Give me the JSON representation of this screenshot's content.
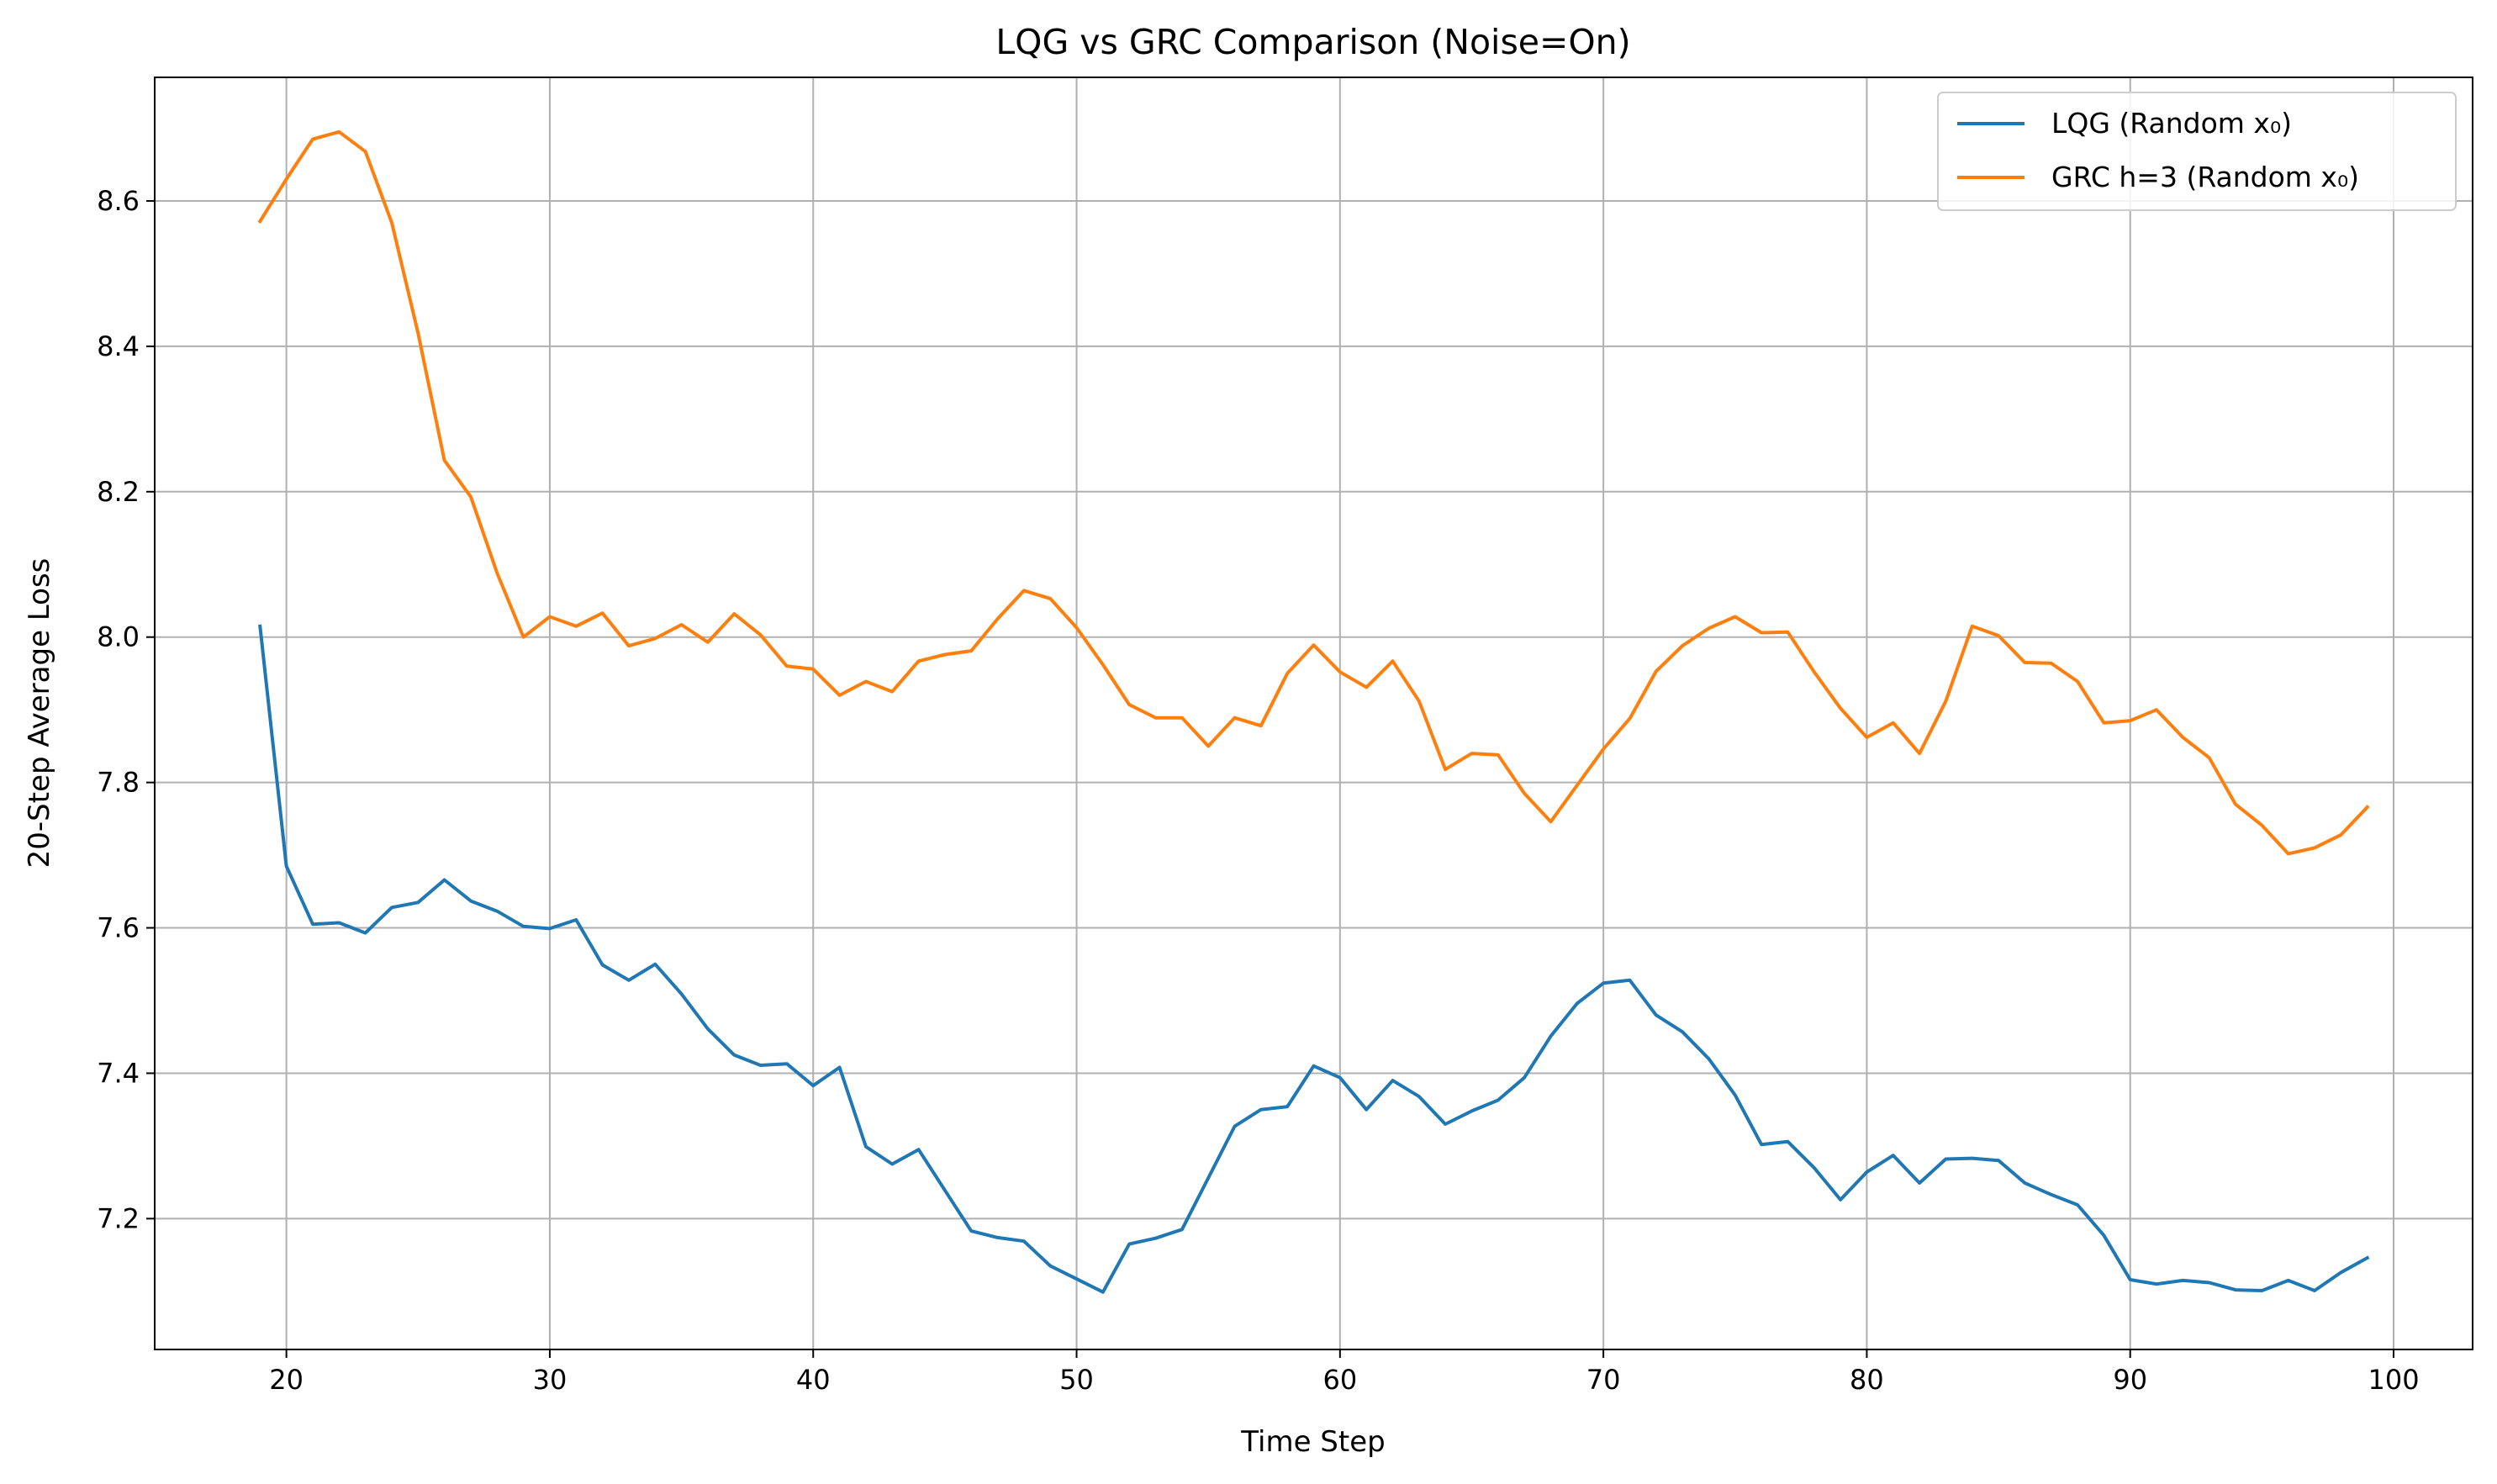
{
  "chart_data": {
    "type": "line",
    "title": "LQG vs GRC Comparison (Noise=On)",
    "xlabel": "Time Step",
    "ylabel": "20-Step Average Loss",
    "xlim": [
      15,
      103
    ],
    "ylim": [
      7.02,
      8.77
    ],
    "xticks": [
      20,
      30,
      40,
      50,
      60,
      70,
      80,
      90,
      100
    ],
    "yticks": [
      7.2,
      7.4,
      7.6,
      7.8,
      8.0,
      8.2,
      8.4,
      8.6
    ],
    "grid": true,
    "legend_position": "top-right",
    "x": [
      19,
      20,
      21,
      22,
      23,
      24,
      25,
      26,
      27,
      28,
      29,
      30,
      31,
      32,
      33,
      34,
      35,
      36,
      37,
      38,
      39,
      40,
      41,
      42,
      43,
      44,
      45,
      46,
      47,
      48,
      49,
      50,
      51,
      52,
      53,
      54,
      55,
      56,
      57,
      58,
      59,
      60,
      61,
      62,
      63,
      64,
      65,
      66,
      67,
      68,
      69,
      70,
      71,
      72,
      73,
      74,
      75,
      76,
      77,
      78,
      79,
      80,
      81,
      82,
      83,
      84,
      85,
      86,
      87,
      88,
      89,
      90,
      91,
      92,
      93,
      94,
      95,
      96,
      97,
      98,
      99
    ],
    "series": [
      {
        "name": "LQG (Random x₀)",
        "color": "#1f77b4",
        "values": [
          8.015,
          7.685,
          7.605,
          7.607,
          7.593,
          7.628,
          7.635,
          7.666,
          7.637,
          7.623,
          7.602,
          7.599,
          7.611,
          7.549,
          7.528,
          7.55,
          7.509,
          7.461,
          7.425,
          7.411,
          7.413,
          7.383,
          7.408,
          7.299,
          7.275,
          7.295,
          7.239,
          7.183,
          7.174,
          7.169,
          7.135,
          7.117,
          7.099,
          7.165,
          7.173,
          7.185,
          7.256,
          7.327,
          7.35,
          7.354,
          7.41,
          7.394,
          7.35,
          7.39,
          7.368,
          7.33,
          7.348,
          7.363,
          7.394,
          7.451,
          7.496,
          7.524,
          7.528,
          7.48,
          7.457,
          7.42,
          7.37,
          7.302,
          7.306,
          7.27,
          7.226,
          7.264,
          7.287,
          7.249,
          7.282,
          7.283,
          7.28,
          7.249,
          7.233,
          7.219,
          7.177,
          7.116,
          7.11,
          7.115,
          7.112,
          7.102,
          7.101,
          7.115,
          7.101,
          7.126,
          7.146
        ]
      },
      {
        "name": "GRC h=3 (Random x₀)",
        "color": "#ff7f0e",
        "values": [
          8.572,
          8.63,
          8.685,
          8.695,
          8.668,
          8.57,
          8.418,
          8.243,
          8.193,
          8.088,
          8.0,
          8.028,
          8.015,
          8.033,
          7.988,
          7.998,
          8.017,
          7.993,
          8.032,
          8.003,
          7.96,
          7.956,
          7.92,
          7.939,
          7.925,
          7.967,
          7.976,
          7.981,
          8.025,
          8.064,
          8.053,
          8.013,
          7.962,
          7.907,
          7.889,
          7.889,
          7.85,
          7.889,
          7.878,
          7.95,
          7.989,
          7.952,
          7.931,
          7.967,
          7.912,
          7.818,
          7.84,
          7.838,
          7.785,
          7.746,
          7.796,
          7.846,
          7.888,
          7.953,
          7.988,
          8.012,
          8.028,
          8.006,
          8.007,
          7.952,
          7.902,
          7.862,
          7.882,
          7.84,
          7.912,
          8.015,
          8.002,
          7.965,
          7.964,
          7.939,
          7.882,
          7.885,
          7.9,
          7.862,
          7.834,
          7.77,
          7.741,
          7.702,
          7.71,
          7.728,
          7.766
        ]
      }
    ]
  }
}
